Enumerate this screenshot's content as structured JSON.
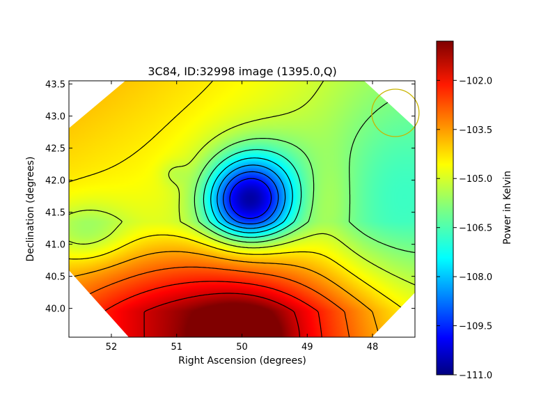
{
  "chart_data": {
    "type": "heatmap",
    "title": "3C84, ID:32998 image (1395.0,Q)",
    "xlabel": "Right Ascension (degrees)",
    "ylabel": "Declination (degrees)",
    "xlim": [
      52.65,
      47.35
    ],
    "ylim": [
      39.55,
      43.55
    ],
    "xticks": [
      52,
      51,
      50,
      49,
      48
    ],
    "yticks": [
      40.0,
      40.5,
      41.0,
      41.5,
      42.0,
      42.5,
      43.0,
      43.5
    ],
    "colorbar": {
      "label": "Power in Kelvin",
      "range": [
        -111.0,
        -100.8
      ],
      "ticks": [
        -102.0,
        -103.5,
        -105.0,
        -106.5,
        -108.0,
        -109.5,
        -111.0
      ],
      "colormap": "jet"
    },
    "contours": {
      "style": "dashed",
      "color": "#000000"
    },
    "beam": {
      "ra": 47.65,
      "dec": 43.05,
      "color": "#c8b400"
    },
    "features": [
      {
        "name": "minimum",
        "ra": 50.05,
        "dec": 41.65,
        "value": -111.0
      },
      {
        "name": "maximum",
        "ra": 50.1,
        "dec": 39.55,
        "value": -100.8
      },
      {
        "name": "small-dip",
        "ra": 51.0,
        "dec": 42.0,
        "value": -105.3
      },
      {
        "name": "cool-east-region",
        "ra": 47.6,
        "dec": 42.5,
        "value": -106.0
      },
      {
        "name": "warm-north-west",
        "ra": 52.3,
        "dec": 42.8,
        "value": -103.8
      }
    ]
  }
}
